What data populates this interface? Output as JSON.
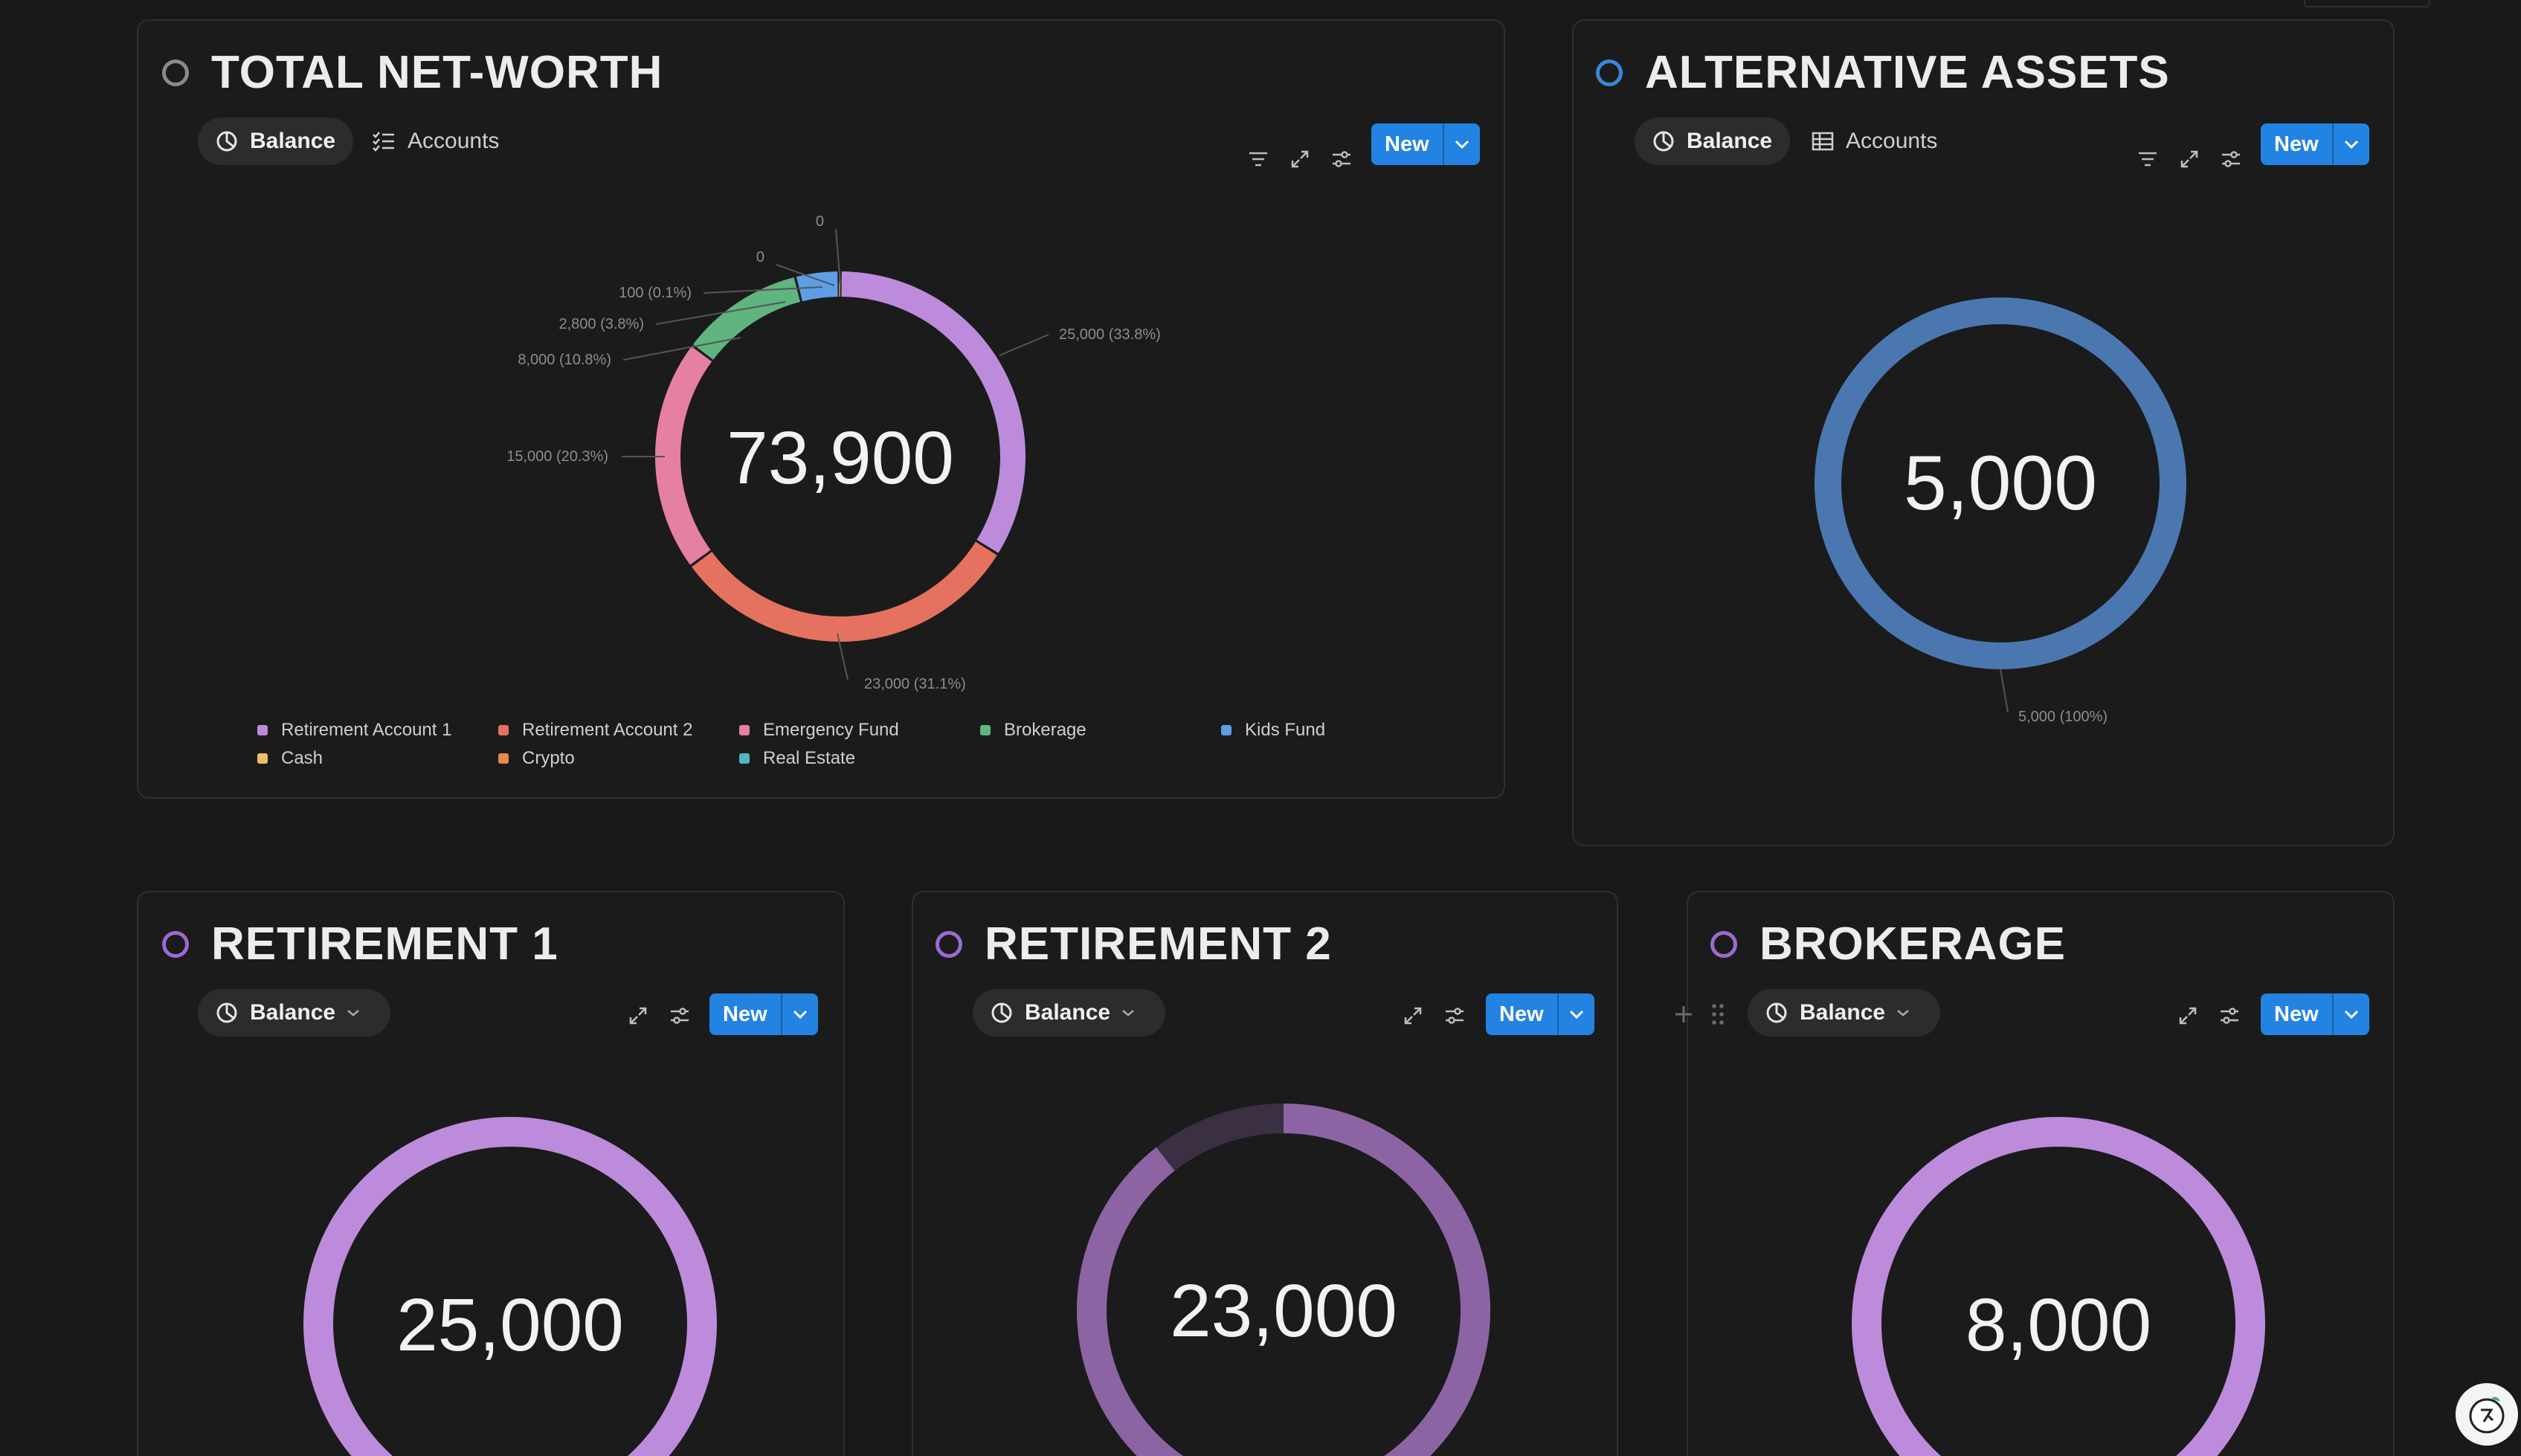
{
  "total": {
    "title": "TOTAL NET-WORTH",
    "tabs": {
      "balance": "Balance",
      "accounts": "Accounts"
    },
    "new_label": "New",
    "center_value": "73,900",
    "callouts": [
      "25,000 (33.8%)",
      "23,000 (31.1%)",
      "15,000 (20.3%)",
      "8,000 (10.8%)",
      "2,800 (3.8%)",
      "100 (0.1%)",
      "0",
      "0"
    ],
    "legend": [
      {
        "label": "Retirement Account 1",
        "color": "#bd8bdb"
      },
      {
        "label": "Retirement Account 2",
        "color": "#e5715f"
      },
      {
        "label": "Emergency Fund",
        "color": "#e57fa4"
      },
      {
        "label": "Brokerage",
        "color": "#5fb47f"
      },
      {
        "label": "Kids Fund",
        "color": "#5e9ee6"
      },
      {
        "label": "Cash",
        "color": "#e8c063"
      },
      {
        "label": "Crypto",
        "color": "#e88a4a"
      },
      {
        "label": "Real Estate",
        "color": "#4fb6c8"
      }
    ]
  },
  "alt": {
    "title": "ALTERNATIVE ASSETS",
    "tabs": {
      "balance": "Balance",
      "accounts": "Accounts"
    },
    "new_label": "New",
    "center_value": "5,000",
    "callout": "5,000 (100%)",
    "ring_color": "#4a77b0",
    "title_icon_color": "#3b86d6"
  },
  "ret1": {
    "title": "RETIREMENT 1",
    "tab": "Balance",
    "new_label": "New",
    "center_value": "25,000",
    "ring_color": "#bd8bdb",
    "title_icon_color": "#9b6ad0"
  },
  "ret2": {
    "title": "RETIREMENT 2",
    "tab": "Balance",
    "new_label": "New",
    "center_value": "23,000",
    "ring_color": "#8c64a3",
    "ring_track": "#3b2f44",
    "title_icon_color": "#9b6ad0"
  },
  "brokerage": {
    "title": "BROKERAGE",
    "tab": "Balance",
    "new_label": "New",
    "center_value": "8,000",
    "ring_color": "#bd8bdb",
    "title_icon_color": "#9b6ad0"
  },
  "chart_data": [
    {
      "type": "pie",
      "categories": [
        "Retirement Account 1",
        "Retirement Account 2",
        "Emergency Fund",
        "Brokerage",
        "Kids Fund",
        "Cash",
        "Crypto",
        "Real Estate"
      ],
      "values": [
        25000,
        23000,
        15000,
        8000,
        2800,
        100,
        0,
        0
      ],
      "title": "",
      "center_label": "73,900",
      "legend": "bottom"
    },
    {
      "type": "pie",
      "categories": [
        "Alternative"
      ],
      "values": [
        5000
      ],
      "center_label": "5,000"
    },
    {
      "type": "pie",
      "values": [
        25000
      ],
      "center_label": "25,000"
    },
    {
      "type": "pie",
      "values": [
        23000
      ],
      "center_label": "23,000"
    },
    {
      "type": "pie",
      "values": [
        8000
      ],
      "center_label": "8,000"
    }
  ]
}
